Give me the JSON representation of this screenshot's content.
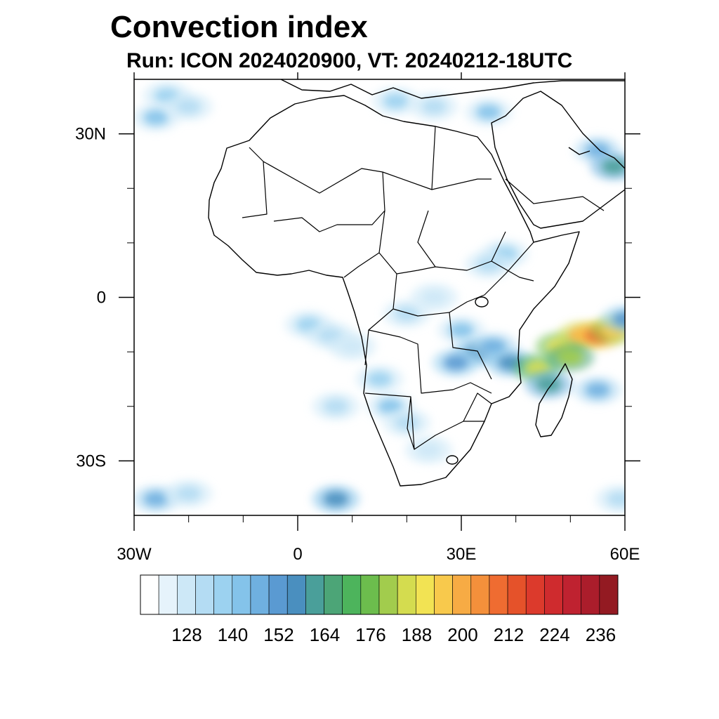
{
  "title": "Convection index",
  "subtitle": "Run: ICON 2024020900,  VT: 20240212-18UTC",
  "map": {
    "lon_range": [
      -30,
      60
    ],
    "lat_range": [
      -40,
      40
    ],
    "x_ticks": [
      {
        "value": -30,
        "label": "30W"
      },
      {
        "value": 0,
        "label": "0"
      },
      {
        "value": 30,
        "label": "30E"
      },
      {
        "value": 60,
        "label": "60E"
      }
    ],
    "y_ticks": [
      {
        "value": 30,
        "label": "30N"
      },
      {
        "value": 0,
        "label": "0"
      },
      {
        "value": -30,
        "label": "30S"
      }
    ],
    "minor_x_ticks": [
      -20,
      -10,
      10,
      20,
      40,
      50
    ],
    "minor_y_ticks": [
      20,
      10,
      -10,
      -20
    ],
    "land_color": "#ffffff",
    "ocean_color": "#ffffff",
    "outline_color": "#000000"
  },
  "colorbar": {
    "colors": [
      "#ffffff",
      "#e6f3fb",
      "#cde8f7",
      "#b4dcf3",
      "#9cd2f0",
      "#84c3ea",
      "#6fb0e0",
      "#5a9ad2",
      "#4a8fbf",
      "#4a9f9a",
      "#4ca577",
      "#4db45c",
      "#6cbd4d",
      "#a2cc4d",
      "#d4dc4f",
      "#f2e353",
      "#f8c94c",
      "#f7ab44",
      "#f4903b",
      "#ef6c31",
      "#e5522a",
      "#dc3a2c",
      "#cf2b2e",
      "#bf2230",
      "#ab1d2b",
      "#931a22"
    ],
    "labels": [
      "128",
      "140",
      "152",
      "164",
      "176",
      "188",
      "200",
      "212",
      "224",
      "236"
    ]
  },
  "convection_patches": [
    {
      "lon": -24,
      "lat": 37,
      "level": 4
    },
    {
      "lon": -26,
      "lat": 33,
      "level": 5
    },
    {
      "lon": -20,
      "lat": 35,
      "level": 3
    },
    {
      "lon": 18,
      "lat": 36,
      "level": 4
    },
    {
      "lon": 25,
      "lat": 35,
      "level": 3
    },
    {
      "lon": 35,
      "lat": 34,
      "level": 5
    },
    {
      "lon": 55,
      "lat": 27,
      "level": 6
    },
    {
      "lon": 58,
      "lat": 24,
      "level": 9
    },
    {
      "lon": 38,
      "lat": 8,
      "level": 4
    },
    {
      "lon": 35,
      "lat": 6,
      "level": 3
    },
    {
      "lon": 2,
      "lat": -5,
      "level": 4
    },
    {
      "lon": 6,
      "lat": -7,
      "level": 3
    },
    {
      "lon": 10,
      "lat": -9,
      "level": 2
    },
    {
      "lon": 20,
      "lat": -3,
      "level": 3
    },
    {
      "lon": 25,
      "lat": 0,
      "level": 2
    },
    {
      "lon": 30,
      "lat": -6,
      "level": 5
    },
    {
      "lon": 33,
      "lat": -10,
      "level": 8
    },
    {
      "lon": 29,
      "lat": -12,
      "level": 7
    },
    {
      "lon": 36,
      "lat": -9,
      "level": 6
    },
    {
      "lon": 39,
      "lat": -12,
      "level": 8
    },
    {
      "lon": 44,
      "lat": -13,
      "level": 14
    },
    {
      "lon": 48,
      "lat": -9,
      "level": 15
    },
    {
      "lon": 52,
      "lat": -7,
      "level": 17
    },
    {
      "lon": 55,
      "lat": -7,
      "level": 19
    },
    {
      "lon": 58,
      "lat": -6,
      "level": 16
    },
    {
      "lon": 50,
      "lat": -11,
      "level": 13
    },
    {
      "lon": 46,
      "lat": -16,
      "level": 9
    },
    {
      "lon": 55,
      "lat": -17,
      "level": 6
    },
    {
      "lon": 60,
      "lat": -4,
      "level": 7
    },
    {
      "lon": 15,
      "lat": -15,
      "level": 4
    },
    {
      "lon": 17,
      "lat": -20,
      "level": 5
    },
    {
      "lon": 20,
      "lat": -23,
      "level": 3
    },
    {
      "lon": 7,
      "lat": -20,
      "level": 3
    },
    {
      "lon": 24,
      "lat": -28,
      "level": 2
    },
    {
      "lon": -26,
      "lat": -37,
      "level": 6
    },
    {
      "lon": -20,
      "lat": -36,
      "level": 3
    },
    {
      "lon": 7,
      "lat": -37,
      "level": 8
    },
    {
      "lon": 59,
      "lat": -37,
      "level": 3
    }
  ]
}
